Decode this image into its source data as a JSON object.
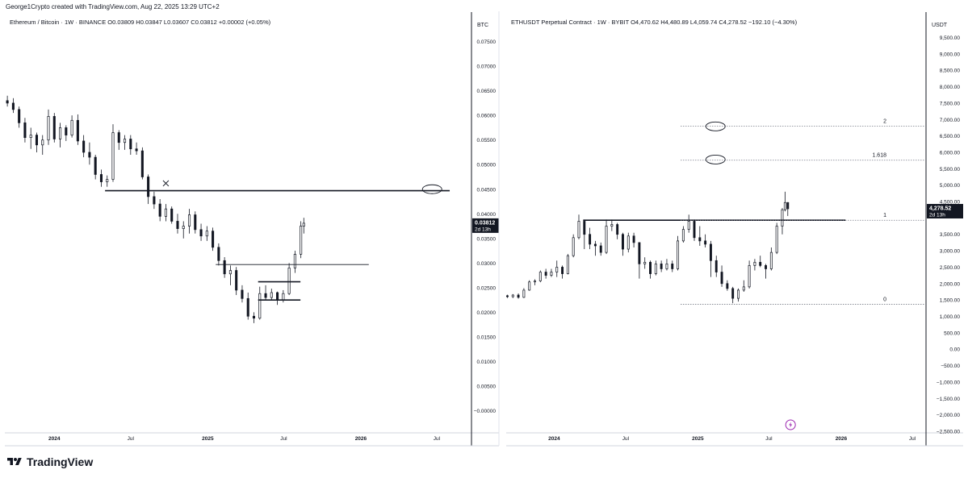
{
  "header": {
    "text": "George1Crypto created with TradingView.com, Aug 22, 2025 13:29 UTC+2"
  },
  "footer": {
    "brand": "TradingView"
  },
  "chart_data": [
    {
      "type": "candlestick",
      "title": "Ethereum / Bitcoin · 1W · BINANCE  O0.03809  H0.03847  L0.03607  C0.03812  +0.00002 (+0.05%)",
      "currency": "BTC",
      "y_ticks": [
        "0.07500",
        "0.07000",
        "0.06500",
        "0.06000",
        "0.05500",
        "0.05000",
        "0.04500",
        "0.04000",
        "0.03500",
        "0.03000",
        "0.02500",
        "0.02000",
        "0.01500",
        "0.01000",
        "0.00500",
        "−0.00000"
      ],
      "y_tick_values": [
        0.075,
        0.07,
        0.065,
        0.06,
        0.055,
        0.05,
        0.045,
        0.04,
        0.035,
        0.03,
        0.025,
        0.02,
        0.015,
        0.01,
        0.005,
        0
      ],
      "x_ticks": [
        "2024",
        "Jul",
        "2025",
        "Jul",
        "2026",
        "Jul"
      ],
      "x_tick_dates": [
        "2024-01-01",
        "2024-07-01",
        "2025-01-01",
        "2025-07-01",
        "2026-01-01",
        "2026-07-01"
      ],
      "ylim": [
        -0.0045,
        0.0805
      ],
      "xlim": [
        "2023-09-05",
        "2026-09-20"
      ],
      "price_label": {
        "value": "0.03812",
        "time": "2d 13h"
      },
      "candles": [
        {
          "date": "2023-09-11",
          "o": 0.063,
          "h": 0.064,
          "l": 0.0618,
          "c": 0.0625
        },
        {
          "date": "2023-09-25",
          "o": 0.0625,
          "h": 0.0635,
          "l": 0.0605,
          "c": 0.0612
        },
        {
          "date": "2023-10-09",
          "o": 0.0612,
          "h": 0.0618,
          "l": 0.0575,
          "c": 0.0585
        },
        {
          "date": "2023-10-23",
          "o": 0.0585,
          "h": 0.0595,
          "l": 0.0545,
          "c": 0.0555
        },
        {
          "date": "2023-11-06",
          "o": 0.0555,
          "h": 0.0575,
          "l": 0.0532,
          "c": 0.056
        },
        {
          "date": "2023-11-20",
          "o": 0.056,
          "h": 0.0565,
          "l": 0.0525,
          "c": 0.054
        },
        {
          "date": "2023-12-04",
          "o": 0.054,
          "h": 0.056,
          "l": 0.052,
          "c": 0.055
        },
        {
          "date": "2023-12-18",
          "o": 0.055,
          "h": 0.0612,
          "l": 0.054,
          "c": 0.0598
        },
        {
          "date": "2024-01-01",
          "o": 0.0598,
          "h": 0.0605,
          "l": 0.0545,
          "c": 0.0552
        },
        {
          "date": "2024-01-15",
          "o": 0.0552,
          "h": 0.0585,
          "l": 0.0535,
          "c": 0.0575
        },
        {
          "date": "2024-01-29",
          "o": 0.0575,
          "h": 0.058,
          "l": 0.0548,
          "c": 0.056
        },
        {
          "date": "2024-02-12",
          "o": 0.056,
          "h": 0.06,
          "l": 0.0555,
          "c": 0.059
        },
        {
          "date": "2024-02-26",
          "o": 0.059,
          "h": 0.0602,
          "l": 0.054,
          "c": 0.0548
        },
        {
          "date": "2024-03-11",
          "o": 0.0548,
          "h": 0.056,
          "l": 0.0515,
          "c": 0.0525
        },
        {
          "date": "2024-03-25",
          "o": 0.0525,
          "h": 0.0545,
          "l": 0.05,
          "c": 0.0515
        },
        {
          "date": "2024-04-08",
          "o": 0.0515,
          "h": 0.052,
          "l": 0.047,
          "c": 0.048
        },
        {
          "date": "2024-04-22",
          "o": 0.048,
          "h": 0.049,
          "l": 0.0455,
          "c": 0.0465
        },
        {
          "date": "2024-05-06",
          "o": 0.0465,
          "h": 0.0478,
          "l": 0.0455,
          "c": 0.047
        },
        {
          "date": "2024-05-20",
          "o": 0.047,
          "h": 0.0582,
          "l": 0.0465,
          "c": 0.0565
        },
        {
          "date": "2024-06-03",
          "o": 0.0565,
          "h": 0.057,
          "l": 0.053,
          "c": 0.0545
        },
        {
          "date": "2024-06-17",
          "o": 0.0545,
          "h": 0.056,
          "l": 0.053,
          "c": 0.0552
        },
        {
          "date": "2024-07-01",
          "o": 0.0552,
          "h": 0.056,
          "l": 0.052,
          "c": 0.0532
        },
        {
          "date": "2024-07-15",
          "o": 0.0532,
          "h": 0.0545,
          "l": 0.052,
          "c": 0.0528
        },
        {
          "date": "2024-07-29",
          "o": 0.0528,
          "h": 0.0535,
          "l": 0.047,
          "c": 0.0475
        },
        {
          "date": "2024-08-12",
          "o": 0.0475,
          "h": 0.048,
          "l": 0.042,
          "c": 0.0435
        },
        {
          "date": "2024-08-26",
          "o": 0.0435,
          "h": 0.0445,
          "l": 0.041,
          "c": 0.042
        },
        {
          "date": "2024-09-09",
          "o": 0.042,
          "h": 0.043,
          "l": 0.0385,
          "c": 0.0395
        },
        {
          "date": "2024-09-23",
          "o": 0.0395,
          "h": 0.042,
          "l": 0.0385,
          "c": 0.041
        },
        {
          "date": "2024-10-07",
          "o": 0.041,
          "h": 0.0415,
          "l": 0.038,
          "c": 0.0385
        },
        {
          "date": "2024-10-21",
          "o": 0.0385,
          "h": 0.04,
          "l": 0.036,
          "c": 0.037
        },
        {
          "date": "2024-11-04",
          "o": 0.037,
          "h": 0.0385,
          "l": 0.035,
          "c": 0.0375
        },
        {
          "date": "2024-11-18",
          "o": 0.0375,
          "h": 0.041,
          "l": 0.036,
          "c": 0.0398
        },
        {
          "date": "2024-12-02",
          "o": 0.0398,
          "h": 0.0405,
          "l": 0.036,
          "c": 0.0368
        },
        {
          "date": "2024-12-16",
          "o": 0.0368,
          "h": 0.038,
          "l": 0.0345,
          "c": 0.0355
        },
        {
          "date": "2024-12-30",
          "o": 0.0355,
          "h": 0.0375,
          "l": 0.0345,
          "c": 0.0365
        },
        {
          "date": "2025-01-13",
          "o": 0.0365,
          "h": 0.0372,
          "l": 0.0325,
          "c": 0.0332
        },
        {
          "date": "2025-01-27",
          "o": 0.0332,
          "h": 0.034,
          "l": 0.0295,
          "c": 0.0305
        },
        {
          "date": "2025-02-10",
          "o": 0.0305,
          "h": 0.0312,
          "l": 0.027,
          "c": 0.0278
        },
        {
          "date": "2025-02-24",
          "o": 0.0278,
          "h": 0.0295,
          "l": 0.0255,
          "c": 0.0285
        },
        {
          "date": "2025-03-10",
          "o": 0.0285,
          "h": 0.0292,
          "l": 0.0235,
          "c": 0.0245
        },
        {
          "date": "2025-03-24",
          "o": 0.0245,
          "h": 0.0255,
          "l": 0.022,
          "c": 0.0228
        },
        {
          "date": "2025-04-07",
          "o": 0.0228,
          "h": 0.024,
          "l": 0.0185,
          "c": 0.0192
        },
        {
          "date": "2025-04-21",
          "o": 0.0192,
          "h": 0.02,
          "l": 0.0178,
          "c": 0.0188
        },
        {
          "date": "2025-05-05",
          "o": 0.0188,
          "h": 0.0252,
          "l": 0.0185,
          "c": 0.0238
        },
        {
          "date": "2025-05-19",
          "o": 0.0238,
          "h": 0.0255,
          "l": 0.0225,
          "c": 0.023
        },
        {
          "date": "2025-06-02",
          "o": 0.023,
          "h": 0.0248,
          "l": 0.0225,
          "c": 0.024
        },
        {
          "date": "2025-06-16",
          "o": 0.024,
          "h": 0.0242,
          "l": 0.0215,
          "c": 0.0225
        },
        {
          "date": "2025-06-30",
          "o": 0.0225,
          "h": 0.0245,
          "l": 0.022,
          "c": 0.0238
        },
        {
          "date": "2025-07-14",
          "o": 0.0238,
          "h": 0.03,
          "l": 0.0235,
          "c": 0.029
        },
        {
          "date": "2025-07-28",
          "o": 0.029,
          "h": 0.0325,
          "l": 0.028,
          "c": 0.0318
        },
        {
          "date": "2025-08-11",
          "o": 0.0318,
          "h": 0.0385,
          "l": 0.031,
          "c": 0.0375
        },
        {
          "date": "2025-08-18",
          "o": 0.0375,
          "h": 0.0392,
          "l": 0.036,
          "c": 0.0381
        }
      ],
      "drawings": {
        "horizontal_lines": [
          {
            "from": "2024-05-01",
            "to": "2026-08-01",
            "y": 0.0447,
            "weight": "thick"
          },
          {
            "from": "2025-01-20",
            "to": "2026-01-20",
            "y": 0.0297,
            "weight": "thin"
          },
          {
            "from": "2025-05-01",
            "to": "2025-08-10",
            "y": 0.0262,
            "weight": "thick"
          },
          {
            "from": "2025-05-01",
            "to": "2025-08-10",
            "y": 0.0225,
            "weight": "thick"
          }
        ],
        "ellipse_marker": {
          "date": "2026-06-20",
          "y": 0.045
        },
        "x_marker": {
          "date": "2024-09-23",
          "y": 0.0462
        }
      }
    },
    {
      "type": "candlestick",
      "title": "ETHUSDT Perpetual Contract · 1W · BYBIT  O4,470.62  H4,480.89  L4,059.74  C4,278.52  −192.10 (−4.30%)",
      "currency": "USDT",
      "y_ticks": [
        "9,500.00",
        "9,000.00",
        "8,500.00",
        "8,000.00",
        "7,500.00",
        "7,000.00",
        "6,500.00",
        "6,000.00",
        "5,500.00",
        "5,000.00",
        "4,500.00",
        "3,500.00",
        "3,000.00",
        "2,500.00",
        "2,000.00",
        "1,500.00",
        "1,000.00",
        "500.00",
        "0.00",
        "−500.00",
        "−1,000.00",
        "−1,500.00",
        "−2,000.00",
        "−2,500.00"
      ],
      "y_tick_values": [
        9500,
        9000,
        8500,
        8000,
        7500,
        7000,
        6500,
        6000,
        5500,
        5000,
        4500,
        3500,
        3000,
        2500,
        2000,
        1500,
        1000,
        500,
        0,
        -500,
        -1000,
        -1500,
        -2000,
        -2500
      ],
      "x_ticks": [
        "2024",
        "Jul",
        "2025",
        "Jul",
        "2026",
        "Jul"
      ],
      "x_tick_dates": [
        "2024-01-01",
        "2024-07-01",
        "2025-01-01",
        "2025-07-01",
        "2026-01-01",
        "2026-07-01"
      ],
      "ylim": [
        -2550,
        10200
      ],
      "xlim": [
        "2023-09-01",
        "2026-08-05"
      ],
      "price_label": {
        "value": "4,278.52",
        "time": "2d 13h"
      },
      "candles": [
        {
          "date": "2023-09-04",
          "o": 1630,
          "h": 1660,
          "l": 1560,
          "c": 1600
        },
        {
          "date": "2023-09-18",
          "o": 1600,
          "h": 1680,
          "l": 1560,
          "c": 1650
        },
        {
          "date": "2023-10-02",
          "o": 1650,
          "h": 1700,
          "l": 1540,
          "c": 1580
        },
        {
          "date": "2023-10-16",
          "o": 1580,
          "h": 1860,
          "l": 1560,
          "c": 1800
        },
        {
          "date": "2023-10-30",
          "o": 1800,
          "h": 2100,
          "l": 1780,
          "c": 2050
        },
        {
          "date": "2023-11-13",
          "o": 2050,
          "h": 2130,
          "l": 1950,
          "c": 2080
        },
        {
          "date": "2023-11-27",
          "o": 2080,
          "h": 2400,
          "l": 2040,
          "c": 2350
        },
        {
          "date": "2023-12-11",
          "o": 2350,
          "h": 2450,
          "l": 2150,
          "c": 2250
        },
        {
          "date": "2023-12-25",
          "o": 2250,
          "h": 2450,
          "l": 2200,
          "c": 2350
        },
        {
          "date": "2024-01-08",
          "o": 2350,
          "h": 2700,
          "l": 2200,
          "c": 2500
        },
        {
          "date": "2024-01-22",
          "o": 2500,
          "h": 2550,
          "l": 2150,
          "c": 2300
        },
        {
          "date": "2024-02-05",
          "o": 2300,
          "h": 2900,
          "l": 2280,
          "c": 2850
        },
        {
          "date": "2024-02-19",
          "o": 2850,
          "h": 3500,
          "l": 2800,
          "c": 3400
        },
        {
          "date": "2024-03-04",
          "o": 3400,
          "h": 4100,
          "l": 3350,
          "c": 3900
        },
        {
          "date": "2024-03-18",
          "o": 3900,
          "h": 3950,
          "l": 3050,
          "c": 3500
        },
        {
          "date": "2024-04-01",
          "o": 3500,
          "h": 3700,
          "l": 3050,
          "c": 3200
        },
        {
          "date": "2024-04-15",
          "o": 3200,
          "h": 3300,
          "l": 2850,
          "c": 3150
        },
        {
          "date": "2024-04-29",
          "o": 3150,
          "h": 3250,
          "l": 2850,
          "c": 2950
        },
        {
          "date": "2024-05-13",
          "o": 2950,
          "h": 3950,
          "l": 2900,
          "c": 3750
        },
        {
          "date": "2024-05-27",
          "o": 3750,
          "h": 3950,
          "l": 3600,
          "c": 3800
        },
        {
          "date": "2024-06-10",
          "o": 3800,
          "h": 3850,
          "l": 3350,
          "c": 3500
        },
        {
          "date": "2024-06-24",
          "o": 3500,
          "h": 3550,
          "l": 2850,
          "c": 3050
        },
        {
          "date": "2024-07-08",
          "o": 3050,
          "h": 3550,
          "l": 2950,
          "c": 3450
        },
        {
          "date": "2024-07-22",
          "o": 3450,
          "h": 3550,
          "l": 3100,
          "c": 3250
        },
        {
          "date": "2024-08-05",
          "o": 3250,
          "h": 3250,
          "l": 2150,
          "c": 2600
        },
        {
          "date": "2024-08-19",
          "o": 2600,
          "h": 2800,
          "l": 2450,
          "c": 2650
        },
        {
          "date": "2024-09-02",
          "o": 2650,
          "h": 2700,
          "l": 2150,
          "c": 2300
        },
        {
          "date": "2024-09-16",
          "o": 2300,
          "h": 2700,
          "l": 2250,
          "c": 2600
        },
        {
          "date": "2024-09-30",
          "o": 2600,
          "h": 2700,
          "l": 2350,
          "c": 2450
        },
        {
          "date": "2024-10-14",
          "o": 2450,
          "h": 2750,
          "l": 2400,
          "c": 2600
        },
        {
          "date": "2024-10-28",
          "o": 2600,
          "h": 2700,
          "l": 2350,
          "c": 2450
        },
        {
          "date": "2024-11-11",
          "o": 2450,
          "h": 3450,
          "l": 2400,
          "c": 3300
        },
        {
          "date": "2024-11-25",
          "o": 3300,
          "h": 3750,
          "l": 3250,
          "c": 3650
        },
        {
          "date": "2024-12-09",
          "o": 3650,
          "h": 4100,
          "l": 3550,
          "c": 3900
        },
        {
          "date": "2024-12-23",
          "o": 3900,
          "h": 3950,
          "l": 3300,
          "c": 3400
        },
        {
          "date": "2025-01-06",
          "o": 3400,
          "h": 3750,
          "l": 3150,
          "c": 3300
        },
        {
          "date": "2025-01-20",
          "o": 3300,
          "h": 3500,
          "l": 3100,
          "c": 3200
        },
        {
          "date": "2025-02-03",
          "o": 3200,
          "h": 3300,
          "l": 2200,
          "c": 2700
        },
        {
          "date": "2025-02-17",
          "o": 2700,
          "h": 2850,
          "l": 2200,
          "c": 2350
        },
        {
          "date": "2025-03-03",
          "o": 2350,
          "h": 2550,
          "l": 1900,
          "c": 2000
        },
        {
          "date": "2025-03-17",
          "o": 2000,
          "h": 2100,
          "l": 1780,
          "c": 1850
        },
        {
          "date": "2025-03-31",
          "o": 1850,
          "h": 1900,
          "l": 1400,
          "c": 1550
        },
        {
          "date": "2025-04-14",
          "o": 1550,
          "h": 1850,
          "l": 1450,
          "c": 1800
        },
        {
          "date": "2025-04-28",
          "o": 1800,
          "h": 2100,
          "l": 1750,
          "c": 1900
        },
        {
          "date": "2025-05-12",
          "o": 1900,
          "h": 2700,
          "l": 1850,
          "c": 2550
        },
        {
          "date": "2025-05-26",
          "o": 2550,
          "h": 2750,
          "l": 2400,
          "c": 2650
        },
        {
          "date": "2025-06-09",
          "o": 2650,
          "h": 2850,
          "l": 2500,
          "c": 2550
        },
        {
          "date": "2025-06-23",
          "o": 2550,
          "h": 2600,
          "l": 2150,
          "c": 2450
        },
        {
          "date": "2025-07-07",
          "o": 2450,
          "h": 3100,
          "l": 2400,
          "c": 2950
        },
        {
          "date": "2025-07-21",
          "o": 2950,
          "h": 3850,
          "l": 2900,
          "c": 3750
        },
        {
          "date": "2025-08-04",
          "o": 3750,
          "h": 4300,
          "l": 3500,
          "c": 4250
        },
        {
          "date": "2025-08-11",
          "o": 4250,
          "h": 4800,
          "l": 4200,
          "c": 4470
        },
        {
          "date": "2025-08-18",
          "o": 4470,
          "h": 4481,
          "l": 4060,
          "c": 4279
        }
      ],
      "drawings": {
        "horizontal_lines": [
          {
            "from": "2024-03-15",
            "to": "2026-01-12",
            "y": 3930,
            "weight": "thick"
          }
        ],
        "fib_levels": [
          {
            "label": "2",
            "y": 6800
          },
          {
            "label": "1.618",
            "y": 5760
          },
          {
            "label": "1",
            "y": 3930
          },
          {
            "label": "0",
            "y": 1370
          }
        ],
        "fib_start": "2024-11-18",
        "ellipse_markers": [
          {
            "date": "2025-02-15",
            "y": 6790
          },
          {
            "date": "2025-02-15",
            "y": 5780
          }
        ],
        "bolt_icon_date": "2025-08-25"
      }
    }
  ]
}
